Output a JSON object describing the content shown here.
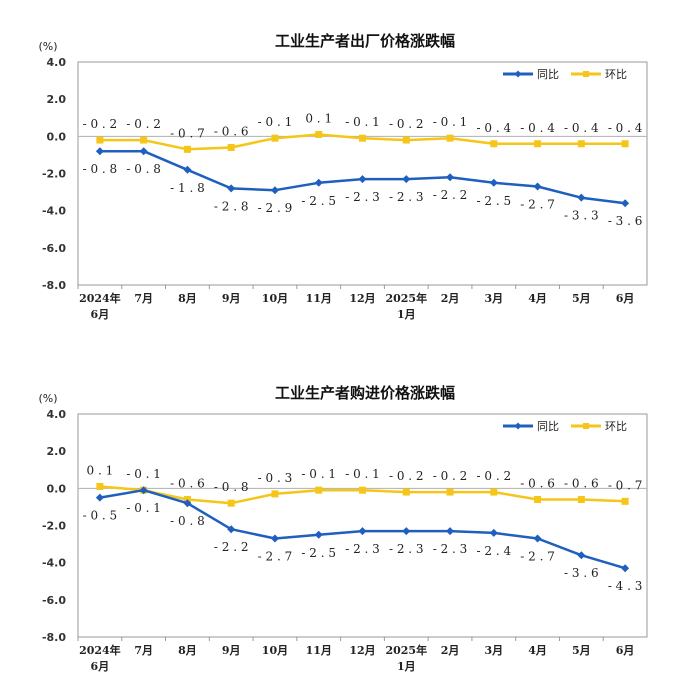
{
  "colors": {
    "yoy": "#1f5fbf",
    "mom": "#f5c518",
    "axis": "#9a9a9a",
    "zero": "#b0b0b0"
  },
  "chart_data": [
    {
      "type": "line",
      "title": "工业生产者出厂价格涨跌幅",
      "unit": "(%)",
      "ylim": [
        -8,
        4
      ],
      "yticks": [
        "4.0",
        "2.0",
        "0.0",
        "-2.0",
        "-4.0",
        "-6.0",
        "-8.0"
      ],
      "categories": [
        "2024年|6月",
        "7月",
        "8月",
        "9月",
        "10月",
        "11月",
        "12月",
        "2025年|1月",
        "2月",
        "3月",
        "4月",
        "5月",
        "6月"
      ],
      "legend": "top-right",
      "series": [
        {
          "name": "同比",
          "key": "yoy",
          "values": [
            -0.8,
            -0.8,
            -1.8,
            -2.8,
            -2.9,
            -2.5,
            -2.3,
            -2.3,
            -2.2,
            -2.5,
            -2.7,
            -3.3,
            -3.6
          ],
          "labels": [
            "-0.8",
            "-0.8",
            "-1.8",
            "-2.8",
            "-2.9",
            "-2.5",
            "-2.3",
            "-2.3",
            "-2.2",
            "-2.5",
            "-2.7",
            "-3.3",
            "-3.6"
          ]
        },
        {
          "name": "环比",
          "key": "mom",
          "values": [
            -0.2,
            -0.2,
            -0.7,
            -0.6,
            -0.1,
            0.1,
            -0.1,
            -0.2,
            -0.1,
            -0.4,
            -0.4,
            -0.4,
            -0.4
          ],
          "labels": [
            "-0.2",
            "-0.2",
            "-0.7",
            "-0.6",
            "-0.1",
            "0.1",
            "-0.1",
            "-0.2",
            "-0.1",
            "-0.4",
            "-0.4",
            "-0.4",
            "-0.4"
          ]
        }
      ]
    },
    {
      "type": "line",
      "title": "工业生产者购进价格涨跌幅",
      "unit": "(%)",
      "ylim": [
        -8,
        4
      ],
      "yticks": [
        "4.0",
        "2.0",
        "0.0",
        "-2.0",
        "-4.0",
        "-6.0",
        "-8.0"
      ],
      "categories": [
        "2024年|6月",
        "7月",
        "8月",
        "9月",
        "10月",
        "11月",
        "12月",
        "2025年|1月",
        "2月",
        "3月",
        "4月",
        "5月",
        "6月"
      ],
      "legend": "top-right",
      "series": [
        {
          "name": "同比",
          "key": "yoy",
          "values": [
            -0.5,
            -0.1,
            -0.8,
            -2.2,
            -2.7,
            -2.5,
            -2.3,
            -2.3,
            -2.3,
            -2.4,
            -2.7,
            -3.6,
            -4.3
          ],
          "labels": [
            "-0.5",
            "-0.1",
            "-0.8",
            "-2.2",
            "-2.7",
            "-2.5",
            "-2.3",
            "-2.3",
            "-2.3",
            "-2.4",
            "-2.7",
            "-3.6",
            "-4.3"
          ]
        },
        {
          "name": "环比",
          "key": "mom",
          "values": [
            0.1,
            -0.1,
            -0.6,
            -0.8,
            -0.3,
            -0.1,
            -0.1,
            -0.2,
            -0.2,
            -0.2,
            -0.6,
            -0.6,
            -0.7
          ],
          "labels": [
            "0.1",
            "-0.1",
            "-0.6",
            "-0.8",
            "-0.3",
            "-0.1",
            "-0.1",
            "-0.2",
            "-0.2",
            "-0.2",
            "-0.6",
            "-0.6",
            "-0.7"
          ]
        }
      ]
    }
  ]
}
